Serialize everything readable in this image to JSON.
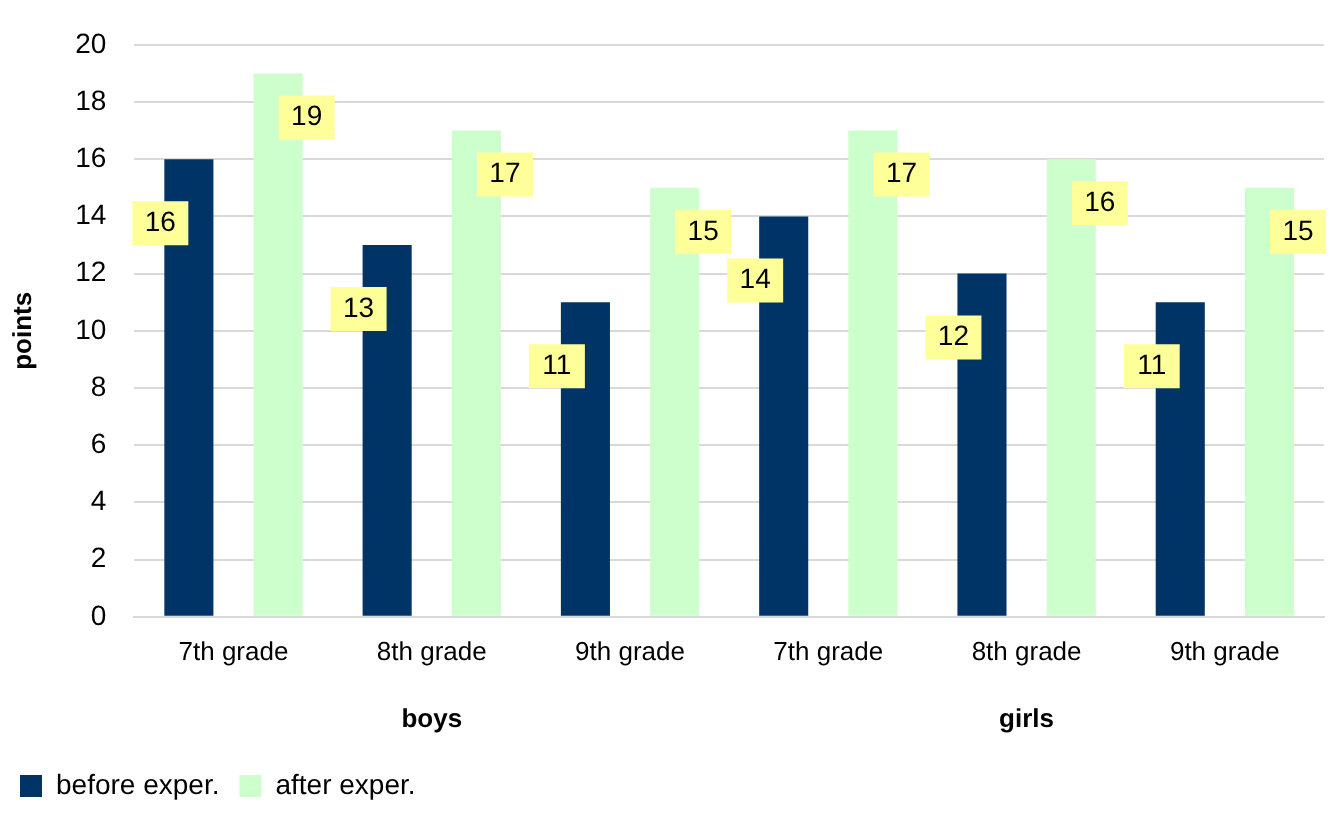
{
  "chart_data": {
    "type": "bar",
    "ylabel": "points",
    "categories": [
      "7th grade",
      "8th grade",
      "9th grade",
      "7th grade",
      "8th grade",
      "9th grade"
    ],
    "annotations": [
      "boys",
      "girls"
    ],
    "series": [
      {
        "name": "before exper.",
        "color": "#003366",
        "values": [
          16,
          13,
          11,
          14,
          12,
          11
        ]
      },
      {
        "name": "after exper.",
        "color": "#ccffcc",
        "values": [
          19,
          17,
          15,
          17,
          16,
          15
        ]
      }
    ],
    "ylim": [
      0,
      20
    ],
    "yticks": [
      0,
      2,
      4,
      6,
      8,
      10,
      12,
      14,
      16,
      18,
      20
    ],
    "grid": "y",
    "legend": "bottom left",
    "data_labels": true
  }
}
